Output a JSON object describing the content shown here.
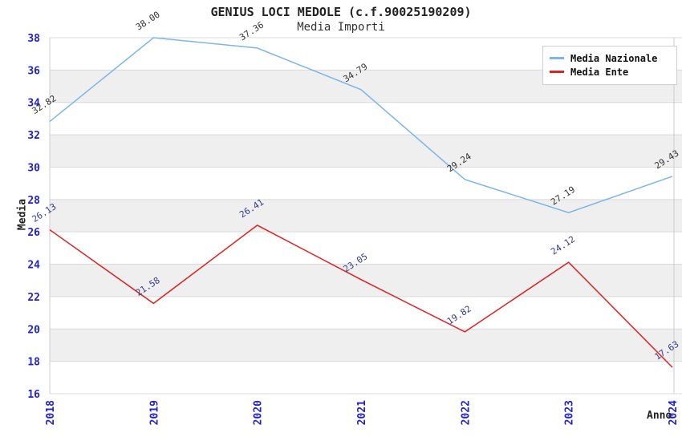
{
  "title": "GENIUS LOCI MEDOLE (c.f.90025190209)",
  "subtitle": "Media Importi",
  "axes": {
    "y_label": "Media",
    "x_label": "Anno"
  },
  "legend": {
    "items": [
      {
        "label": "Media Nazionale",
        "color": "#7cb5ec"
      },
      {
        "label": "Media Ente",
        "color": "#dd2222"
      }
    ]
  },
  "colors": {
    "tick_label": "#2222cc",
    "gridline": "#d9d9d9",
    "band_gray": "#efefef",
    "plot_border": "#cccccc",
    "nazionale_line": "#7cb5ec",
    "ente_line": "#dd2222",
    "nazionale_point_label": "#333333",
    "ente_point_label": "#333a8c"
  },
  "chart_data": {
    "type": "line",
    "title": "GENIUS LOCI MEDOLE (c.f.90025190209)",
    "subtitle": "Media Importi",
    "xlabel": "Anno",
    "ylabel": "Media",
    "categories": [
      "2018",
      "2019",
      "2020",
      "2021",
      "2022",
      "2023",
      "2024"
    ],
    "series": [
      {
        "name": "Media Nazionale",
        "color": "#7cb5ec",
        "values": [
          32.82,
          38.0,
          37.36,
          34.79,
          29.24,
          27.19,
          29.43
        ],
        "labels": [
          "32.82",
          "38.00",
          "37.36",
          "34.79",
          "29.24",
          "27.19",
          "29.43"
        ],
        "label_color": "#333333"
      },
      {
        "name": "Media Ente",
        "color": "#dd2222",
        "values": [
          26.13,
          21.58,
          26.41,
          23.05,
          19.82,
          24.12,
          17.63
        ],
        "labels": [
          "26.13",
          "21.58",
          "26.41",
          "23.05",
          "19.82",
          "24.12",
          "17.63"
        ],
        "label_color": "#333a8c"
      }
    ],
    "ylim": [
      16,
      38
    ],
    "y_ticks": [
      16,
      18,
      20,
      22,
      24,
      26,
      28,
      30,
      32,
      34,
      36,
      38
    ],
    "grid": "horizontal gridlines every 2 units with alternating gray bands (36-34, 32-30, 28-26, 24-22, 20-18)",
    "legend_position": "top-right",
    "point_labels_rotation_deg": -33,
    "x_tick_rotation_deg": -90
  }
}
